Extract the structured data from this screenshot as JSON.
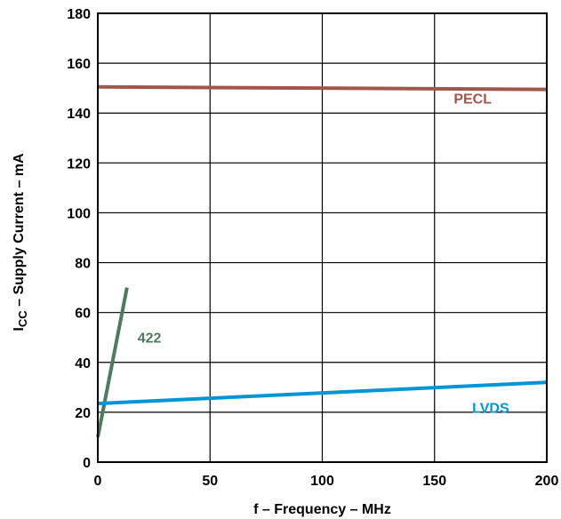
{
  "chart_data": {
    "type": "line",
    "title": "",
    "xlabel": "f – Frequency – MHz",
    "ylabel": {
      "prefix": "I",
      "subscript": "CC",
      "suffix": " – Supply Current – mA"
    },
    "xlim": [
      0,
      200
    ],
    "ylim": [
      0,
      180
    ],
    "x_ticks": [
      0,
      50,
      100,
      150,
      200
    ],
    "y_ticks": [
      0,
      20,
      40,
      60,
      80,
      100,
      120,
      140,
      160,
      180
    ],
    "grid": true,
    "legend": "inline-labels",
    "series": [
      {
        "name": "PECL",
        "color": "#a0574a",
        "x": [
          0,
          200
        ],
        "y": [
          150.5,
          149.5
        ],
        "label_at": [
          167,
          146
        ]
      },
      {
        "name": "422",
        "color": "#4f7a5e",
        "x": [
          0,
          13
        ],
        "y": [
          10,
          70
        ],
        "label_at": [
          23,
          50
        ]
      },
      {
        "name": "LVDS",
        "color": "#0095d5",
        "x": [
          0,
          200
        ],
        "y": [
          23.5,
          32
        ],
        "label_at": [
          175,
          22
        ]
      }
    ]
  }
}
